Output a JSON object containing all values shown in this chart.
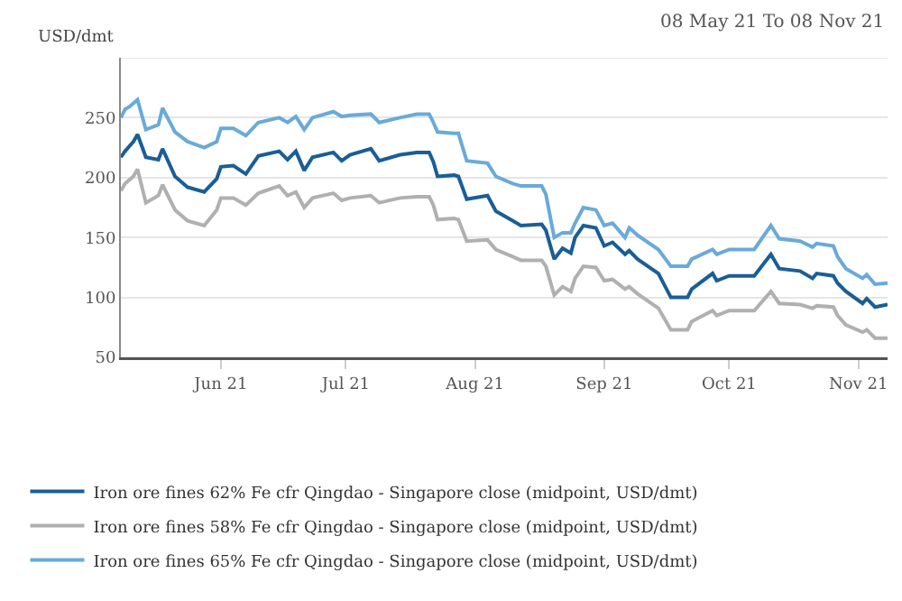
{
  "chart_data": {
    "type": "line",
    "subtitle": "08 May 21 To 08 Nov 21",
    "ylabel": "USD/dmt",
    "x": [
      "2021-05-08",
      "2021-05-09",
      "2021-05-10",
      "2021-05-11",
      "2021-05-12",
      "2021-05-14",
      "2021-05-17",
      "2021-05-18",
      "2021-05-21",
      "2021-05-24",
      "2021-05-28",
      "2021-05-31",
      "2021-06-01",
      "2021-06-04",
      "2021-06-07",
      "2021-06-10",
      "2021-06-15",
      "2021-06-17",
      "2021-06-19",
      "2021-06-21",
      "2021-06-23",
      "2021-06-28",
      "2021-06-30",
      "2021-07-02",
      "2021-07-07",
      "2021-07-09",
      "2021-07-14",
      "2021-07-18",
      "2021-07-21",
      "2021-07-22",
      "2021-07-23",
      "2021-07-27",
      "2021-07-28",
      "2021-07-30",
      "2021-08-04",
      "2021-08-06",
      "2021-08-10",
      "2021-08-12",
      "2021-08-17",
      "2021-08-18",
      "2021-08-20",
      "2021-08-22",
      "2021-08-24",
      "2021-08-25",
      "2021-08-27",
      "2021-08-30",
      "2021-09-01",
      "2021-09-03",
      "2021-09-06",
      "2021-09-07",
      "2021-09-09",
      "2021-09-14",
      "2021-09-17",
      "2021-09-21",
      "2021-09-22",
      "2021-09-27",
      "2021-09-28",
      "2021-10-01",
      "2021-10-07",
      "2021-10-11",
      "2021-10-13",
      "2021-10-18",
      "2021-10-21",
      "2021-10-22",
      "2021-10-26",
      "2021-10-27",
      "2021-10-29",
      "2021-11-02",
      "2021-11-03",
      "2021-11-05",
      "2021-11-08"
    ],
    "series": [
      {
        "name": "Iron ore fines 62% Fe cfr Qingdao - Singapore close (midpoint, USD/dmt)",
        "color": "#1a5e96",
        "values": [
          217,
          222,
          226,
          230,
          236,
          217,
          215,
          224,
          201,
          192,
          188,
          199,
          209,
          210,
          203,
          218,
          222,
          215,
          222,
          206,
          217,
          221,
          214,
          219,
          224,
          214,
          219,
          221,
          221,
          213,
          201,
          202,
          201,
          182,
          185,
          172,
          164,
          160,
          161,
          156,
          132,
          141,
          137,
          150,
          160,
          158,
          143,
          146,
          136,
          139,
          132,
          120,
          100,
          100,
          107,
          120,
          114,
          118,
          118,
          136,
          124,
          122,
          116,
          120,
          118,
          112,
          105,
          95,
          99,
          92,
          94
        ]
      },
      {
        "name": "Iron ore fines 58% Fe cfr Qingdao - Singapore close (midpoint, USD/dmt)",
        "color": "#b0b0b0",
        "values": [
          189,
          195,
          198,
          201,
          207,
          179,
          185,
          194,
          173,
          164,
          160,
          173,
          183,
          183,
          177,
          187,
          193,
          185,
          188,
          175,
          183,
          187,
          181,
          183,
          185,
          179,
          183,
          184,
          184,
          177,
          165,
          166,
          165,
          147,
          148,
          140,
          134,
          131,
          131,
          126,
          102,
          109,
          105,
          116,
          126,
          125,
          114,
          115,
          107,
          109,
          103,
          91,
          73,
          73,
          80,
          89,
          85,
          89,
          89,
          105,
          95,
          94,
          91,
          93,
          92,
          85,
          77,
          71,
          73,
          66,
          66
        ]
      },
      {
        "name": "Iron ore fines 65% Fe cfr Qingdao - Singapore close (midpoint, USD/dmt)",
        "color": "#6aaad8",
        "values": [
          250,
          257,
          259,
          262,
          265,
          240,
          244,
          258,
          238,
          230,
          225,
          230,
          241,
          241,
          235,
          246,
          250,
          246,
          251,
          240,
          250,
          255,
          251,
          252,
          253,
          246,
          250,
          253,
          253,
          246,
          238,
          237,
          237,
          214,
          212,
          201,
          195,
          193,
          193,
          186,
          150,
          154,
          154,
          162,
          175,
          173,
          160,
          162,
          150,
          158,
          152,
          140,
          126,
          126,
          132,
          140,
          136,
          140,
          140,
          160,
          149,
          147,
          142,
          145,
          143,
          134,
          124,
          116,
          119,
          111,
          112
        ]
      }
    ],
    "xlim": [
      "2021-05-08",
      "2021-11-08"
    ],
    "xticks": [
      {
        "value": "2021-06-01",
        "label": "Jun 21"
      },
      {
        "value": "2021-07-01",
        "label": "Jul 21"
      },
      {
        "value": "2021-08-01",
        "label": "Aug 21"
      },
      {
        "value": "2021-09-01",
        "label": "Sep 21"
      },
      {
        "value": "2021-10-01",
        "label": "Oct 21"
      },
      {
        "value": "2021-11-01",
        "label": "Nov 21"
      }
    ],
    "ylim": [
      50,
      300
    ],
    "yticks": [
      50,
      100,
      150,
      200,
      250,
      {
        "value": 300,
        "label": null
      }
    ],
    "grid": "y",
    "legend": "bottom",
    "marker": "none",
    "line_style": "solid"
  }
}
